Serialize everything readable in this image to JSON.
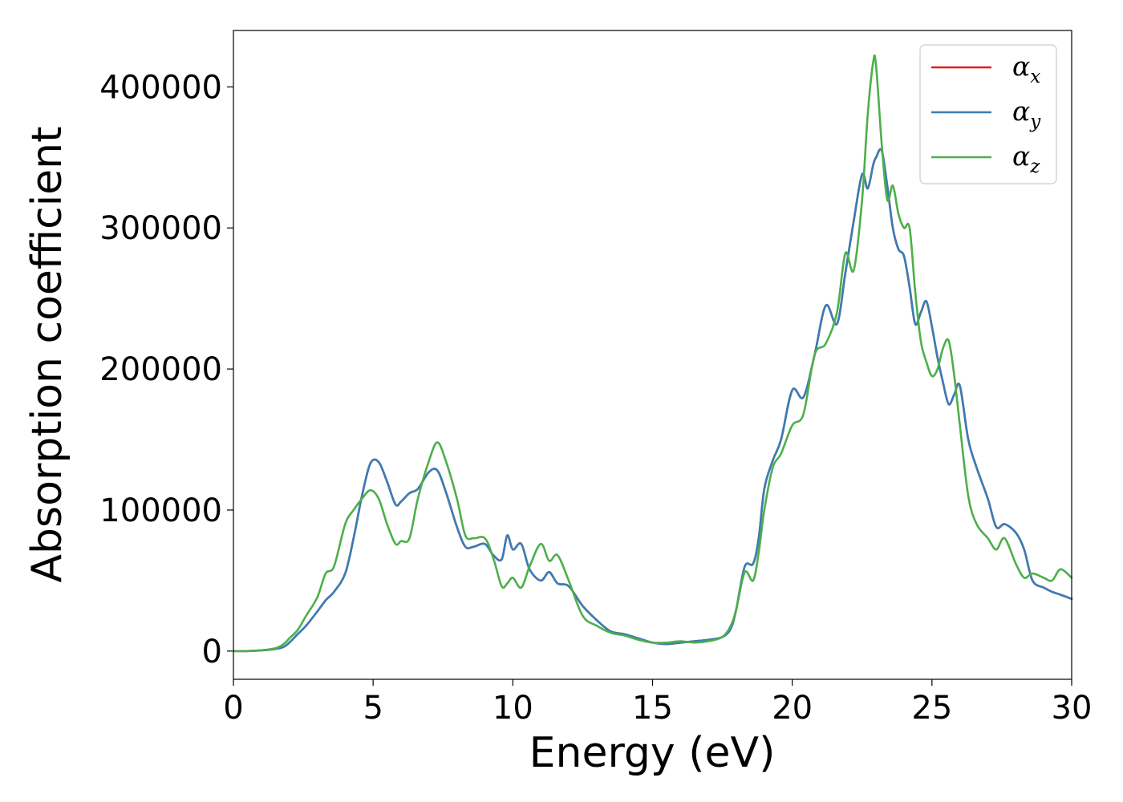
{
  "chart_data": {
    "type": "line",
    "title": "",
    "xlabel": "Energy (eV)",
    "ylabel": "Absorption coefficient",
    "xlim": [
      0,
      30
    ],
    "ylim": [
      -20000,
      440000
    ],
    "xticks": [
      0,
      5,
      10,
      15,
      20,
      25,
      30
    ],
    "xtick_labels": [
      "0",
      "5",
      "10",
      "15",
      "20",
      "25",
      "30"
    ],
    "yticks": [
      0,
      100000,
      200000,
      300000,
      400000
    ],
    "ytick_labels": [
      "0",
      "100000",
      "200000",
      "300000",
      "400000"
    ],
    "grid": false,
    "legend_position": "top-right",
    "x": [
      0,
      0.5,
      1,
      1.5,
      1.8,
      2.0,
      2.3,
      2.6,
      3.0,
      3.3,
      3.6,
      4.0,
      4.3,
      4.6,
      4.9,
      5.2,
      5.5,
      5.8,
      6.0,
      6.3,
      6.6,
      7.0,
      7.3,
      7.6,
      8.0,
      8.3,
      8.6,
      9.0,
      9.3,
      9.6,
      9.8,
      10.0,
      10.3,
      10.6,
      11.0,
      11.3,
      11.6,
      12.0,
      12.5,
      13.0,
      13.5,
      14.0,
      14.5,
      15.0,
      15.5,
      16.0,
      16.5,
      17.0,
      17.5,
      17.8,
      18.0,
      18.3,
      18.6,
      18.8,
      19.0,
      19.3,
      19.6,
      20.0,
      20.4,
      20.8,
      21.2,
      21.6,
      21.9,
      22.2,
      22.5,
      22.7,
      22.9,
      23.0,
      23.2,
      23.4,
      23.6,
      23.8,
      24.0,
      24.2,
      24.4,
      24.6,
      24.8,
      25.0,
      25.2,
      25.4,
      25.6,
      25.8,
      26.0,
      26.3,
      26.6,
      27.0,
      27.3,
      27.6,
      28.0,
      28.3,
      28.6,
      29.0,
      29.3,
      29.6,
      30.0
    ],
    "series": [
      {
        "name": "α_x",
        "legend_main": "α",
        "legend_sub": "x",
        "color": "#e41a1c",
        "values": [
          0,
          0,
          500,
          1500,
          3000,
          6000,
          12000,
          18000,
          28000,
          36000,
          42000,
          55000,
          80000,
          110000,
          133000,
          134000,
          120000,
          104000,
          106000,
          112000,
          115000,
          127000,
          128000,
          113000,
          88000,
          74000,
          74000,
          76000,
          68000,
          65000,
          82000,
          72000,
          76000,
          58000,
          50000,
          56000,
          48000,
          46000,
          32000,
          22000,
          14000,
          12000,
          9000,
          6000,
          5000,
          6000,
          7000,
          8000,
          10000,
          16000,
          30000,
          60000,
          62000,
          80000,
          115000,
          135000,
          150000,
          185000,
          180000,
          210000,
          245000,
          232000,
          268000,
          305000,
          338000,
          328000,
          345000,
          350000,
          355000,
          330000,
          300000,
          285000,
          280000,
          258000,
          232000,
          240000,
          248000,
          230000,
          208000,
          190000,
          175000,
          182000,
          188000,
          150000,
          130000,
          108000,
          88000,
          90000,
          84000,
          72000,
          50000,
          45000,
          42000,
          40000,
          37000
        ]
      },
      {
        "name": "α_y",
        "legend_main": "α",
        "legend_sub": "y",
        "color": "#377eb8",
        "values": [
          0,
          0,
          500,
          1500,
          3000,
          6000,
          12000,
          18000,
          28000,
          36000,
          42000,
          55000,
          80000,
          110000,
          133000,
          134000,
          120000,
          104000,
          106000,
          112000,
          115000,
          127000,
          128000,
          113000,
          88000,
          74000,
          74000,
          76000,
          68000,
          65000,
          82000,
          72000,
          76000,
          58000,
          50000,
          56000,
          48000,
          46000,
          32000,
          22000,
          14000,
          12000,
          9000,
          6000,
          5000,
          6000,
          7000,
          8000,
          10000,
          16000,
          30000,
          60000,
          62000,
          80000,
          115000,
          135000,
          150000,
          185000,
          180000,
          210000,
          245000,
          232000,
          268000,
          305000,
          338000,
          328000,
          345000,
          350000,
          355000,
          330000,
          300000,
          285000,
          280000,
          258000,
          232000,
          240000,
          248000,
          230000,
          208000,
          190000,
          175000,
          182000,
          188000,
          150000,
          130000,
          108000,
          88000,
          90000,
          84000,
          72000,
          50000,
          45000,
          42000,
          40000,
          37000
        ]
      },
      {
        "name": "α_z",
        "legend_main": "α",
        "legend_sub": "z",
        "color": "#4daf4a",
        "values": [
          0,
          0,
          500,
          2000,
          5000,
          9000,
          15000,
          25000,
          38000,
          55000,
          60000,
          90000,
          100000,
          108000,
          114000,
          108000,
          90000,
          76000,
          78000,
          80000,
          108000,
          135000,
          148000,
          135000,
          108000,
          82000,
          80000,
          80000,
          66000,
          46000,
          48000,
          52000,
          45000,
          60000,
          76000,
          64000,
          68000,
          50000,
          25000,
          18000,
          13000,
          11000,
          8000,
          6000,
          6000,
          7000,
          6000,
          7000,
          10000,
          18000,
          30000,
          56000,
          50000,
          70000,
          100000,
          130000,
          140000,
          160000,
          168000,
          210000,
          218000,
          240000,
          282000,
          270000,
          320000,
          380000,
          418000,
          415000,
          360000,
          320000,
          330000,
          310000,
          300000,
          300000,
          255000,
          220000,
          205000,
          195000,
          200000,
          215000,
          220000,
          195000,
          160000,
          110000,
          90000,
          80000,
          72000,
          80000,
          62000,
          52000,
          55000,
          52000,
          50000,
          58000,
          52000
        ]
      }
    ]
  }
}
